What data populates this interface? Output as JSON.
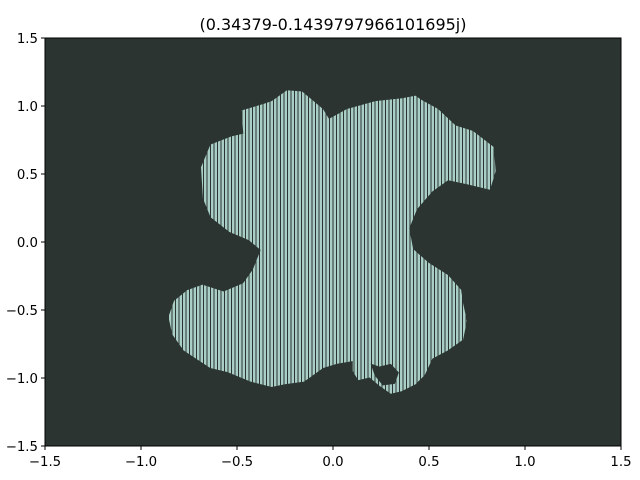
{
  "chart_data": {
    "type": "heatmap",
    "title": "(0.34379-0.1439797966101695j)",
    "xlabel": "",
    "ylabel": "",
    "xlim": [
      -1.5,
      1.5
    ],
    "ylim": [
      -1.5,
      1.5
    ],
    "x_ticks": [
      "−1.5",
      "−1.0",
      "−0.5",
      "0.0",
      "0.5",
      "1.0",
      "1.5"
    ],
    "y_ticks": [
      "1.5",
      "1.0",
      "0.5",
      "0.0",
      "−0.5",
      "−1.0",
      "−1.5"
    ],
    "x_tick_values": [
      -1.5,
      -1.0,
      -0.5,
      0.0,
      0.5,
      1.0,
      1.5
    ],
    "y_tick_values": [
      1.5,
      1.0,
      0.5,
      0.0,
      -0.5,
      -1.0,
      -1.5
    ],
    "grid": false,
    "colors": {
      "background": "#2b3430",
      "fill": "#a9cec6",
      "hatch": "#2b3430"
    },
    "filled_region_outline": {
      "x": [
        -0.24,
        -0.16,
        -0.1,
        -0.05,
        -0.02,
        0.07,
        0.22,
        0.36,
        0.43,
        0.46,
        0.55,
        0.64,
        0.73,
        0.84,
        0.85,
        0.82,
        0.7,
        0.6,
        0.52,
        0.44,
        0.4,
        0.42,
        0.5,
        0.6,
        0.67,
        0.68,
        0.7,
        0.68,
        0.6,
        0.52,
        0.48,
        0.43,
        0.36,
        0.3,
        0.24,
        0.19,
        0.13,
        0.1,
        0.1,
        0.02,
        -0.05,
        -0.15,
        -0.25,
        -0.32,
        -0.43,
        -0.55,
        -0.64,
        -0.78,
        -0.84,
        -0.86,
        -0.83,
        -0.76,
        -0.68,
        -0.57,
        -0.47,
        -0.42,
        -0.38,
        -0.44,
        -0.54,
        -0.64,
        -0.68,
        -0.69,
        -0.64,
        -0.53,
        -0.47,
        -0.48,
        -0.36,
        -0.32
      ],
      "y": [
        1.12,
        1.11,
        1.04,
        0.98,
        0.91,
        0.98,
        1.04,
        1.06,
        1.08,
        1.05,
        0.98,
        0.86,
        0.82,
        0.7,
        0.52,
        0.38,
        0.42,
        0.45,
        0.37,
        0.24,
        0.1,
        -0.05,
        -0.15,
        -0.24,
        -0.35,
        -0.45,
        -0.58,
        -0.72,
        -0.8,
        -0.86,
        -0.98,
        -1.05,
        -1.1,
        -1.12,
        -1.06,
        -1.0,
        -1.02,
        -0.95,
        -0.88,
        -0.9,
        -0.93,
        -1.03,
        -1.05,
        -1.07,
        -1.03,
        -0.96,
        -0.93,
        -0.8,
        -0.68,
        -0.55,
        -0.43,
        -0.35,
        -0.31,
        -0.36,
        -0.3,
        -0.2,
        -0.06,
        0.01,
        0.07,
        0.18,
        0.32,
        0.55,
        0.72,
        0.78,
        0.8,
        0.97,
        1.02,
        1.04
      ]
    },
    "interior_hole_x": [
      0.2,
      0.24,
      0.3,
      0.34,
      0.32,
      0.26,
      0.22
    ],
    "interior_hole_y": [
      -0.9,
      -0.92,
      -0.9,
      -0.96,
      -1.04,
      -1.05,
      -0.98
    ]
  }
}
